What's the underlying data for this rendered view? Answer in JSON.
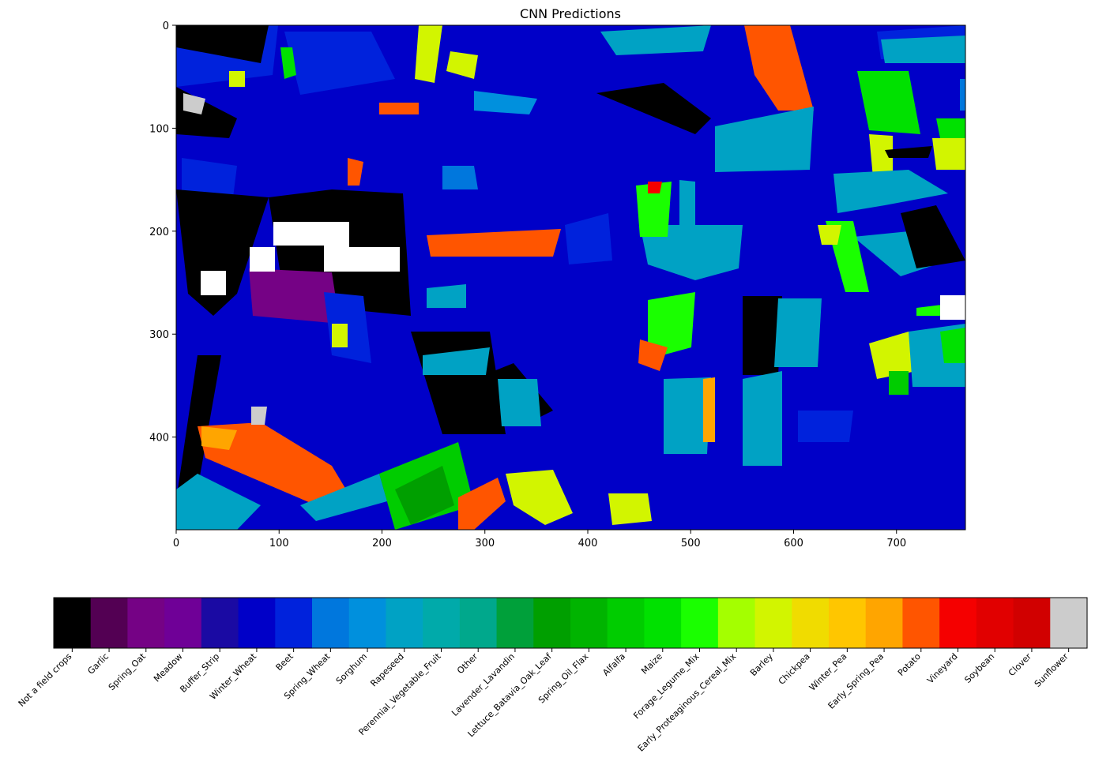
{
  "chart_data": {
    "type": "heatmap",
    "title": "CNN Predictions",
    "xlabel": "",
    "ylabel": "",
    "image_shape": [
      490,
      767
    ],
    "xlim": [
      0,
      767
    ],
    "ylim": [
      490,
      0
    ],
    "xticks": [
      "0",
      "100",
      "200",
      "300",
      "400",
      "500",
      "600",
      "700"
    ],
    "xtick_values": [
      0,
      100,
      200,
      300,
      400,
      500,
      600,
      700
    ],
    "yticks": [
      "0",
      "100",
      "200",
      "300",
      "400"
    ],
    "ytick_values": [
      0,
      100,
      200,
      300,
      400
    ],
    "colorbar": {
      "orientation": "horizontal",
      "classes": [
        {
          "label": "Not a field crops",
          "color": "#000000"
        },
        {
          "label": "Garlic",
          "color": "#530053"
        },
        {
          "label": "Spring_Oat",
          "color": "#750285"
        },
        {
          "label": "Meadow",
          "color": "#6f0097"
        },
        {
          "label": "Buffer_Strip",
          "color": "#1a0aa3"
        },
        {
          "label": "Winter_Wheat",
          "color": "#0000c8"
        },
        {
          "label": "Beet",
          "color": "#0022dc"
        },
        {
          "label": "Spring_Wheat",
          "color": "#0077dd"
        },
        {
          "label": "Sorghum",
          "color": "#0090dd"
        },
        {
          "label": "Rapeseed",
          "color": "#00a2c4"
        },
        {
          "label": "Perennial_Vegetable_Fruit",
          "color": "#00aaaa"
        },
        {
          "label": "Other",
          "color": "#00a88c"
        },
        {
          "label": "Lavender_Lavandin",
          "color": "#00a03a"
        },
        {
          "label": "Lettuce_Batavia_Oak_Leaf",
          "color": "#009f00"
        },
        {
          "label": "Spring_Oil_Flax",
          "color": "#00b400"
        },
        {
          "label": "Alfalfa",
          "color": "#00cc00"
        },
        {
          "label": "Maize",
          "color": "#00e100"
        },
        {
          "label": "Forage_Legume_Mix",
          "color": "#1aff00"
        },
        {
          "label": "Early_Proteaginous_Cereal_Mix",
          "color": "#a4ff00"
        },
        {
          "label": "Barley",
          "color": "#d2f500"
        },
        {
          "label": "Chickpea",
          "color": "#f0dc00"
        },
        {
          "label": "Winter_Pea",
          "color": "#ffc600"
        },
        {
          "label": "Early_Spring_Pea",
          "color": "#ffa500"
        },
        {
          "label": "Potato",
          "color": "#ff5500"
        },
        {
          "label": "Vineyard",
          "color": "#f50000"
        },
        {
          "label": "Soybean",
          "color": "#e10000"
        },
        {
          "label": "Clover",
          "color": "#d10000"
        },
        {
          "label": "Sunflower",
          "color": "#cccccc"
        }
      ]
    }
  }
}
